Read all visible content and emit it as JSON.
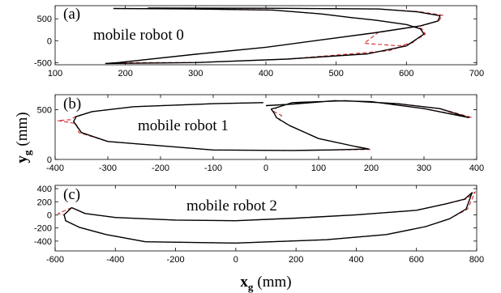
{
  "chart_data": [
    {
      "type": "line",
      "panel": "(a)",
      "annotation": "mobile robot 0",
      "xlim": [
        100,
        700
      ],
      "ylim": [
        -550,
        800
      ],
      "xticks": [
        100,
        200,
        300,
        400,
        500,
        600,
        700
      ],
      "yticks": [
        -500,
        0,
        500
      ],
      "series": [
        {
          "color": "#000000",
          "style": "solid",
          "x": [
            232,
            400,
            560,
            615,
            648,
            645,
            620,
            555,
            400,
            300,
            190,
            172,
            300,
            430,
            545,
            600,
            625,
            620,
            600,
            555,
            520,
            480,
            410,
            298,
            183
          ],
          "y": [
            745,
            740,
            725,
            660,
            570,
            450,
            340,
            180,
            -150,
            -310,
            -500,
            -520,
            -500,
            -420,
            -300,
            -120,
            150,
            270,
            370,
            470,
            530,
            610,
            700,
            725,
            735
          ]
        },
        {
          "color": "#d62728",
          "style": "dashed",
          "x": [
            232,
            400,
            560,
            618,
            652,
            646,
            622,
            560,
            540,
            590,
            610,
            575,
            430,
            300,
            190,
            172,
            300,
            430,
            545,
            600,
            627,
            622,
            600,
            555,
            520,
            480,
            410,
            298,
            183
          ],
          "y": [
            745,
            740,
            725,
            665,
            580,
            455,
            340,
            190,
            -60,
            -120,
            -40,
            -230,
            -420,
            -500,
            -500,
            -520,
            -500,
            -420,
            -300,
            -120,
            150,
            275,
            370,
            470,
            530,
            610,
            700,
            725,
            735
          ]
        }
      ]
    },
    {
      "type": "line",
      "panel": "(b)",
      "annotation": "mobile robot 1",
      "xlim": [
        -400,
        400
      ],
      "ylim": [
        0,
        650
      ],
      "xticks": [
        -400,
        -300,
        -200,
        -100,
        0,
        100,
        200,
        300,
        400
      ],
      "yticks": [
        0,
        500
      ],
      "series": [
        {
          "color": "#000000",
          "style": "solid",
          "x": [
            -5,
            -100,
            -250,
            -330,
            -360,
            -365,
            -350,
            -300,
            -100,
            50,
            120,
            195,
            170,
            100,
            45,
            20,
            15,
            10,
            20,
            50,
            150,
            250,
            330,
            385,
            300,
            200,
            130,
            50,
            0
          ],
          "y": [
            570,
            560,
            530,
            480,
            430,
            380,
            270,
            180,
            95,
            90,
            95,
            105,
            130,
            210,
            340,
            420,
            470,
            505,
            520,
            570,
            590,
            560,
            510,
            420,
            510,
            580,
            590,
            555,
            540
          ]
        },
        {
          "color": "#d62728",
          "style": "dashed",
          "x": [
            -5,
            -100,
            -250,
            -330,
            -362,
            -370,
            -395,
            -360,
            -355,
            -300,
            -100,
            50,
            120,
            198,
            170,
            100,
            45,
            25,
            30,
            15,
            20,
            50,
            150,
            250,
            330,
            392,
            300,
            200,
            130,
            50,
            0
          ],
          "y": [
            570,
            560,
            530,
            480,
            430,
            400,
            390,
            360,
            270,
            180,
            95,
            90,
            95,
            100,
            130,
            210,
            340,
            400,
            440,
            480,
            520,
            570,
            590,
            560,
            510,
            420,
            510,
            580,
            590,
            555,
            540
          ]
        }
      ]
    },
    {
      "type": "line",
      "panel": "(c)",
      "annotation": "mobile robot 2",
      "xlim": [
        -600,
        800
      ],
      "ylim": [
        -550,
        450
      ],
      "xticks": [
        -600,
        -400,
        -200,
        0,
        200,
        400,
        600,
        800
      ],
      "yticks": [
        -400,
        -200,
        0,
        200,
        400
      ],
      "series": [
        {
          "color": "#000000",
          "style": "solid",
          "x": [
            -545,
            -570,
            -565,
            -520,
            -430,
            -300,
            0,
            300,
            500,
            630,
            710,
            765,
            785,
            760,
            700,
            600,
            400,
            200,
            0,
            -200,
            -400,
            -500,
            -545
          ],
          "y": [
            110,
            0,
            -90,
            -190,
            -300,
            -410,
            -430,
            -380,
            -300,
            -180,
            -60,
            90,
            340,
            240,
            170,
            70,
            0,
            -50,
            -90,
            -80,
            -40,
            20,
            110
          ]
        },
        {
          "color": "#d62728",
          "style": "dashed",
          "x": [
            -545,
            -590,
            -570,
            -565,
            -520,
            -430,
            -300,
            0,
            300,
            500,
            630,
            710,
            770,
            795,
            765,
            700,
            600,
            400,
            200,
            0,
            -200,
            -400,
            -500,
            -545
          ],
          "y": [
            110,
            20,
            0,
            -90,
            -190,
            -300,
            -410,
            -430,
            -380,
            -300,
            -180,
            -60,
            90,
            350,
            240,
            170,
            70,
            0,
            -50,
            -90,
            -80,
            -40,
            20,
            110
          ]
        }
      ]
    }
  ],
  "shared": {
    "ylabel_main": "y",
    "ylabel_sub": "g",
    "ylabel_unit": "(mm)",
    "xlabel_main": "x",
    "xlabel_sub": "g",
    "xlabel_unit": "(mm)"
  }
}
